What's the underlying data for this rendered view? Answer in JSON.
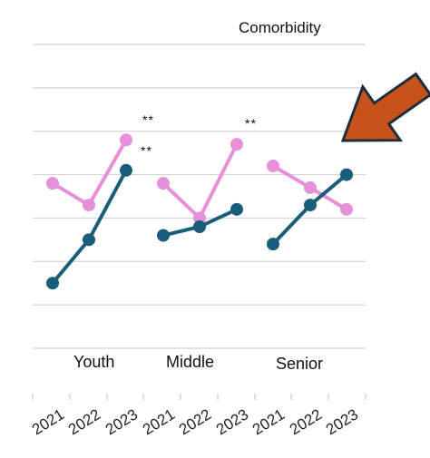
{
  "chart_data": {
    "type": "line",
    "title": "Comorbidity",
    "xlabel": "",
    "ylabel": "",
    "ylim": [
      0,
      7
    ],
    "grid": true,
    "legend": "none",
    "groups": [
      {
        "label": "Youth",
        "years": [
          "2021",
          "2022",
          "2023"
        ]
      },
      {
        "label": "Middle",
        "years": [
          "2021",
          "2022",
          "2023"
        ]
      },
      {
        "label": "Senior",
        "years": [
          "2021",
          "2022",
          "2023"
        ]
      }
    ],
    "series": [
      {
        "color": "#e590d9",
        "values": [
          [
            3.8,
            3.3,
            4.8
          ],
          [
            3.8,
            3.0,
            4.7
          ],
          [
            4.2,
            3.7,
            3.2
          ]
        ]
      },
      {
        "color": "#1a5d7b",
        "values": [
          [
            1.5,
            2.5,
            4.1
          ],
          [
            2.6,
            2.8,
            3.2
          ],
          [
            2.4,
            3.3,
            4.0
          ]
        ]
      }
    ],
    "annotations": [
      "**",
      "**",
      "**"
    ],
    "arrow_color": "#c8521c"
  }
}
